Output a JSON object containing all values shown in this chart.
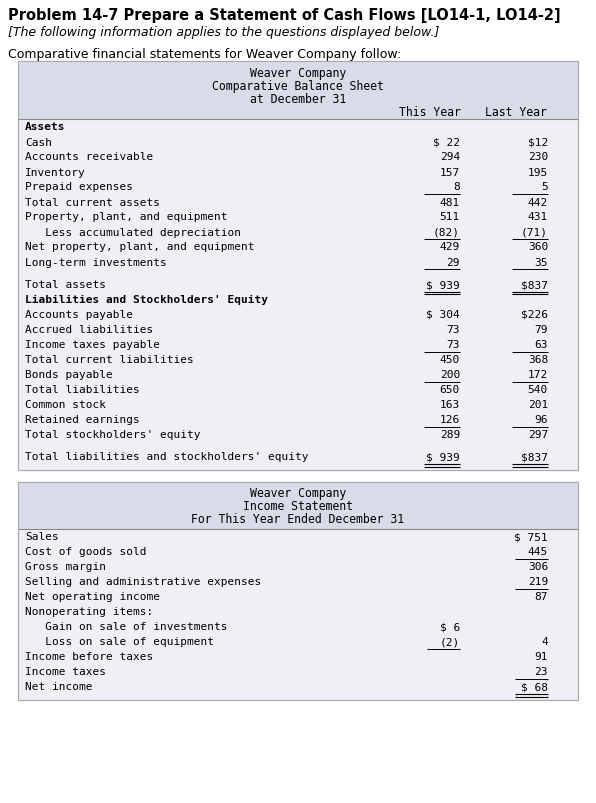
{
  "title_main": "Problem 14-7 Prepare a Statement of Cash Flows [LO14-1, LO14-2]",
  "subtitle_italic": "[The following information applies to the questions displayed below.]",
  "intro_text": "Comparative financial statements for Weaver Company follow:",
  "bg_color": "#ffffff",
  "table_header_bg": "#d8dce8",
  "table_bg": "#eef0f6",
  "bs_title": [
    "Weaver Company",
    "Comparative Balance Sheet",
    "at December 31"
  ],
  "bs_col_headers": [
    "This Year",
    "Last Year"
  ],
  "bs_rows": [
    {
      "label": "Assets",
      "bold": true,
      "this_year": "",
      "last_year": "",
      "line_below": false,
      "dollar_this": false,
      "dollar_last": false,
      "double_line": false,
      "extra_space_before": false
    },
    {
      "label": "Cash",
      "bold": false,
      "this_year": "22",
      "last_year": "12",
      "line_below": false,
      "dollar_this": true,
      "dollar_last": true,
      "double_line": false,
      "extra_space_before": false
    },
    {
      "label": "Accounts receivable",
      "bold": false,
      "this_year": "294",
      "last_year": "230",
      "line_below": false,
      "dollar_this": false,
      "dollar_last": false,
      "double_line": false,
      "extra_space_before": false
    },
    {
      "label": "Inventory",
      "bold": false,
      "this_year": "157",
      "last_year": "195",
      "line_below": false,
      "dollar_this": false,
      "dollar_last": false,
      "double_line": false,
      "extra_space_before": false
    },
    {
      "label": "Prepaid expenses",
      "bold": false,
      "this_year": "8",
      "last_year": "5",
      "line_below": true,
      "dollar_this": false,
      "dollar_last": false,
      "double_line": false,
      "extra_space_before": false
    },
    {
      "label": "Total current assets",
      "bold": false,
      "this_year": "481",
      "last_year": "442",
      "line_below": false,
      "dollar_this": false,
      "dollar_last": false,
      "double_line": false,
      "extra_space_before": false
    },
    {
      "label": "Property, plant, and equipment",
      "bold": false,
      "this_year": "511",
      "last_year": "431",
      "line_below": false,
      "dollar_this": false,
      "dollar_last": false,
      "double_line": false,
      "extra_space_before": false
    },
    {
      "label": "   Less accumulated depreciation",
      "bold": false,
      "this_year": "(82)",
      "last_year": "(71)",
      "line_below": true,
      "dollar_this": false,
      "dollar_last": false,
      "double_line": false,
      "extra_space_before": false
    },
    {
      "label": "Net property, plant, and equipment",
      "bold": false,
      "this_year": "429",
      "last_year": "360",
      "line_below": false,
      "dollar_this": false,
      "dollar_last": false,
      "double_line": false,
      "extra_space_before": false
    },
    {
      "label": "Long-term investments",
      "bold": false,
      "this_year": "29",
      "last_year": "35",
      "line_below": true,
      "dollar_this": false,
      "dollar_last": false,
      "double_line": false,
      "extra_space_before": false
    },
    {
      "label": "Total assets",
      "bold": false,
      "this_year": "939",
      "last_year": "837",
      "line_below": false,
      "dollar_this": true,
      "dollar_last": true,
      "double_line": true,
      "extra_space_before": true
    },
    {
      "label": "Liabilities and Stockholders' Equity",
      "bold": true,
      "this_year": "",
      "last_year": "",
      "line_below": false,
      "dollar_this": false,
      "dollar_last": false,
      "double_line": false,
      "extra_space_before": false
    },
    {
      "label": "Accounts payable",
      "bold": false,
      "this_year": "304",
      "last_year": "226",
      "line_below": false,
      "dollar_this": true,
      "dollar_last": true,
      "double_line": false,
      "extra_space_before": false
    },
    {
      "label": "Accrued liabilities",
      "bold": false,
      "this_year": "73",
      "last_year": "79",
      "line_below": false,
      "dollar_this": false,
      "dollar_last": false,
      "double_line": false,
      "extra_space_before": false
    },
    {
      "label": "Income taxes payable",
      "bold": false,
      "this_year": "73",
      "last_year": "63",
      "line_below": true,
      "dollar_this": false,
      "dollar_last": false,
      "double_line": false,
      "extra_space_before": false
    },
    {
      "label": "Total current liabilities",
      "bold": false,
      "this_year": "450",
      "last_year": "368",
      "line_below": false,
      "dollar_this": false,
      "dollar_last": false,
      "double_line": false,
      "extra_space_before": false
    },
    {
      "label": "Bonds payable",
      "bold": false,
      "this_year": "200",
      "last_year": "172",
      "line_below": true,
      "dollar_this": false,
      "dollar_last": false,
      "double_line": false,
      "extra_space_before": false
    },
    {
      "label": "Total liabilities",
      "bold": false,
      "this_year": "650",
      "last_year": "540",
      "line_below": false,
      "dollar_this": false,
      "dollar_last": false,
      "double_line": false,
      "extra_space_before": false
    },
    {
      "label": "Common stock",
      "bold": false,
      "this_year": "163",
      "last_year": "201",
      "line_below": false,
      "dollar_this": false,
      "dollar_last": false,
      "double_line": false,
      "extra_space_before": false
    },
    {
      "label": "Retained earnings",
      "bold": false,
      "this_year": "126",
      "last_year": "96",
      "line_below": true,
      "dollar_this": false,
      "dollar_last": false,
      "double_line": false,
      "extra_space_before": false
    },
    {
      "label": "Total stockholders' equity",
      "bold": false,
      "this_year": "289",
      "last_year": "297",
      "line_below": false,
      "dollar_this": false,
      "dollar_last": false,
      "double_line": false,
      "extra_space_before": false
    },
    {
      "label": "Total liabilities and stockholders' equity",
      "bold": false,
      "this_year": "939",
      "last_year": "837",
      "line_below": false,
      "dollar_this": true,
      "dollar_last": true,
      "double_line": true,
      "extra_space_before": true
    }
  ],
  "is_title": [
    "Weaver Company",
    "Income Statement",
    "For This Year Ended December 31"
  ],
  "is_rows": [
    {
      "label": "Sales",
      "col1": "",
      "col2": "751",
      "dollar_col1": false,
      "dollar_col2": true,
      "line_below_col1": false,
      "line_below_col2": false,
      "double_line": false
    },
    {
      "label": "Cost of goods sold",
      "col1": "",
      "col2": "445",
      "dollar_col1": false,
      "dollar_col2": false,
      "line_below_col1": false,
      "line_below_col2": true,
      "double_line": false
    },
    {
      "label": "Gross margin",
      "col1": "",
      "col2": "306",
      "dollar_col1": false,
      "dollar_col2": false,
      "line_below_col1": false,
      "line_below_col2": false,
      "double_line": false
    },
    {
      "label": "Selling and administrative expenses",
      "col1": "",
      "col2": "219",
      "dollar_col1": false,
      "dollar_col2": false,
      "line_below_col1": false,
      "line_below_col2": true,
      "double_line": false
    },
    {
      "label": "Net operating income",
      "col1": "",
      "col2": "87",
      "dollar_col1": false,
      "dollar_col2": false,
      "line_below_col1": false,
      "line_below_col2": false,
      "double_line": false
    },
    {
      "label": "Nonoperating items:",
      "col1": "",
      "col2": "",
      "dollar_col1": false,
      "dollar_col2": false,
      "line_below_col1": false,
      "line_below_col2": false,
      "double_line": false
    },
    {
      "label": "   Gain on sale of investments",
      "col1": "6",
      "col2": "",
      "dollar_col1": true,
      "dollar_col2": false,
      "line_below_col1": false,
      "line_below_col2": false,
      "double_line": false
    },
    {
      "label": "   Loss on sale of equipment",
      "col1": "(2)",
      "col2": "4",
      "dollar_col1": false,
      "dollar_col2": false,
      "line_below_col1": true,
      "line_below_col2": false,
      "double_line": false
    },
    {
      "label": "Income before taxes",
      "col1": "",
      "col2": "91",
      "dollar_col1": false,
      "dollar_col2": false,
      "line_below_col1": false,
      "line_below_col2": false,
      "double_line": false
    },
    {
      "label": "Income taxes",
      "col1": "",
      "col2": "23",
      "dollar_col1": false,
      "dollar_col2": false,
      "line_below_col1": false,
      "line_below_col2": true,
      "double_line": false
    },
    {
      "label": "Net income",
      "col1": "",
      "col2": "68",
      "dollar_col1": false,
      "dollar_col2": true,
      "line_below_col1": false,
      "line_below_col2": false,
      "double_line": true
    }
  ]
}
